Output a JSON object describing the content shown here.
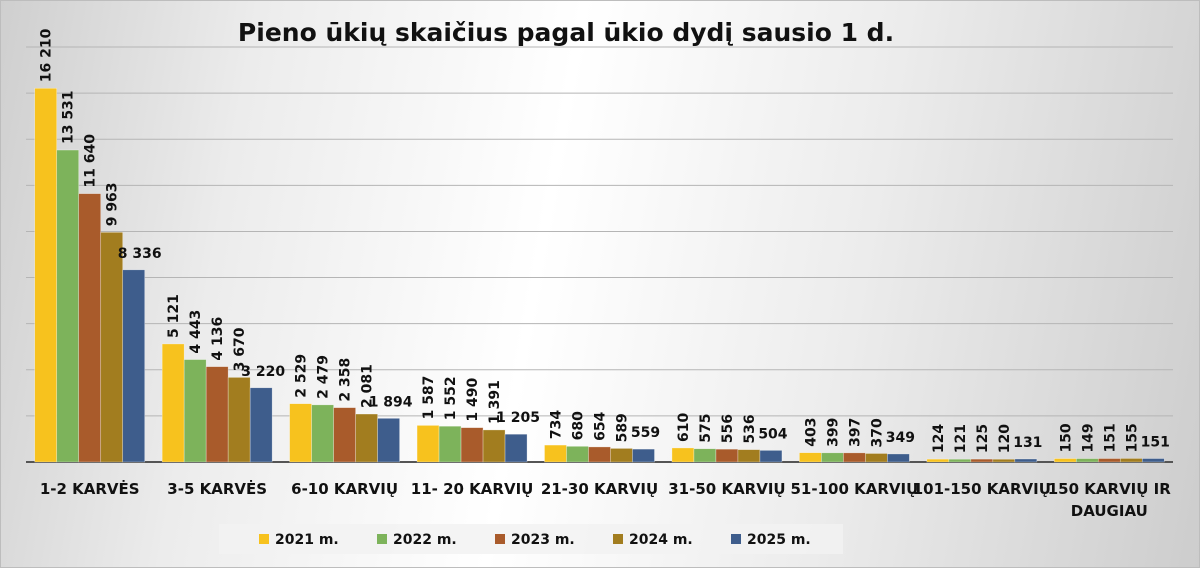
{
  "chart_data": {
    "type": "bar",
    "title": "Pieno ūkių skaičius pagal ūkio dydį sausio 1 d.",
    "xlabel": "",
    "ylabel": "",
    "ylim": [
      0,
      18000
    ],
    "grid": true,
    "grid_step": 2000,
    "legend_position": "bottom",
    "categories": [
      "1-2 KARVĖS",
      "3-5 KARVĖS",
      "6-10 KARVIŲ",
      "11- 20 KARVIŲ",
      "21-30 KARVIŲ",
      "31-50 KARVIŲ",
      "51-100 KARVIŲ",
      "101-150 KARVIŲ",
      "150 KARVIŲ IR DAUGIAU"
    ],
    "series": [
      {
        "name": "2021 m.",
        "color": "#F7C21E",
        "values": [
          16210,
          5121,
          2529,
          1587,
          734,
          610,
          403,
          124,
          150
        ],
        "labels": [
          "16 210",
          "5 121",
          "2 529",
          "1 587",
          "734",
          "610",
          "403",
          "124",
          "150"
        ]
      },
      {
        "name": "2022 m.",
        "color": "#7DB35B",
        "values": [
          13531,
          4443,
          2479,
          1552,
          680,
          575,
          399,
          121,
          149
        ],
        "labels": [
          "13 531",
          "4 443",
          "2 479",
          "1 552",
          "680",
          "575",
          "399",
          "121",
          "149"
        ]
      },
      {
        "name": "2023 m.",
        "color": "#A95B2B",
        "values": [
          11640,
          4136,
          2358,
          1490,
          654,
          556,
          397,
          125,
          151
        ],
        "labels": [
          "11 640",
          "4 136",
          "2 358",
          "1 490",
          "654",
          "556",
          "397",
          "125",
          "151"
        ]
      },
      {
        "name": "2024 m.",
        "color": "#A27D1F",
        "values": [
          9963,
          3670,
          2081,
          1391,
          589,
          536,
          370,
          120,
          155
        ],
        "labels": [
          "9 963",
          "3 670",
          "2 081",
          "1 391",
          "589",
          "536",
          "370",
          "120",
          "155"
        ]
      },
      {
        "name": "2025 m.",
        "color": "#3E5D8C",
        "values": [
          8336,
          3220,
          1894,
          1205,
          559,
          504,
          349,
          131,
          151
        ],
        "labels": [
          "8 336",
          "3 220",
          "1 894",
          "1 205",
          "559",
          "504",
          "349",
          "131",
          "151"
        ]
      }
    ]
  }
}
